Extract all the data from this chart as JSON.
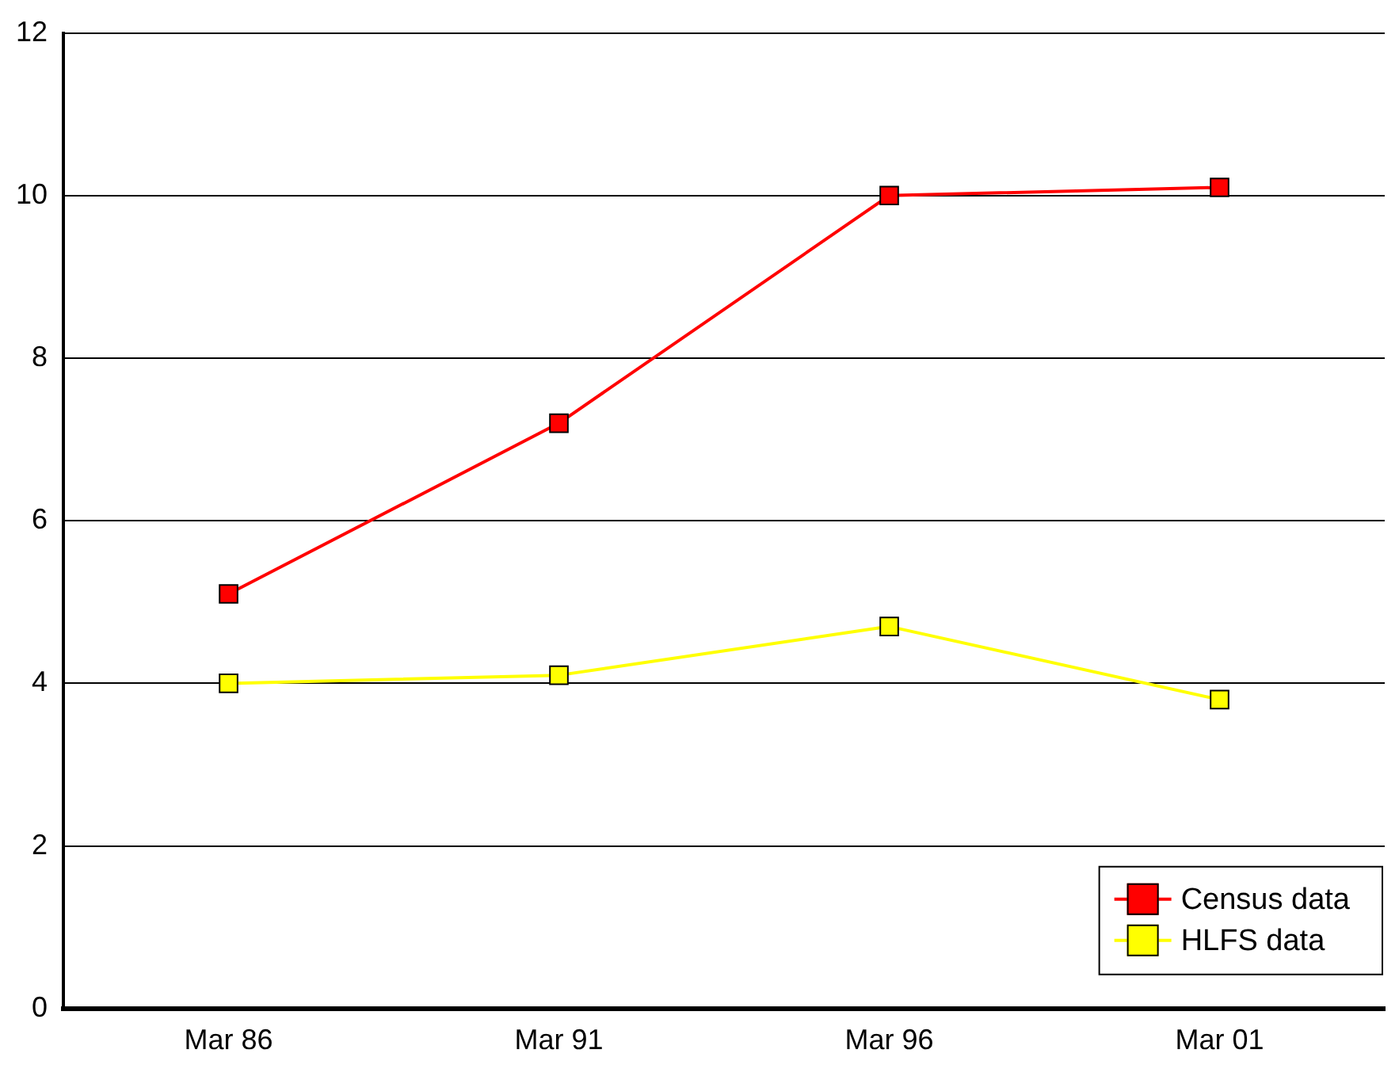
{
  "chart_data": {
    "type": "line",
    "categories": [
      "Mar 86",
      "Mar 91",
      "Mar 96",
      "Mar 01"
    ],
    "series": [
      {
        "name": "Census data",
        "color": "#ff0000",
        "values": [
          5.1,
          7.2,
          10.0,
          10.1
        ]
      },
      {
        "name": "HLFS data",
        "color": "#ffff00",
        "values": [
          4.0,
          4.1,
          4.7,
          3.8
        ]
      }
    ],
    "ylim": [
      0,
      12
    ],
    "yticks": [
      0,
      2,
      4,
      6,
      8,
      10,
      12
    ],
    "grid": "y",
    "legend": "bottom right",
    "marker": "square"
  }
}
